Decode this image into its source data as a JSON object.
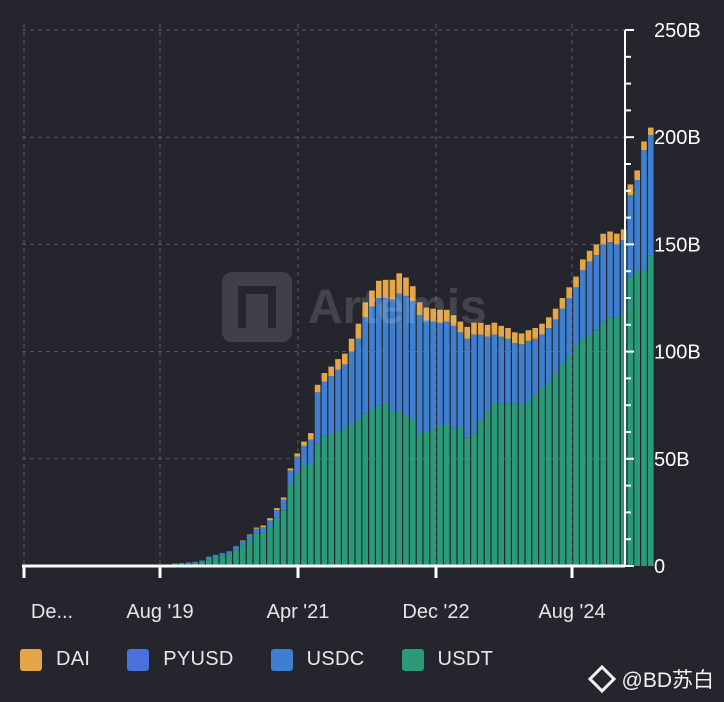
{
  "chart_data": {
    "type": "bar",
    "stacked": true,
    "ylim": [
      0,
      250
    ],
    "yticks": [
      0,
      50,
      100,
      150,
      200,
      250
    ],
    "ytick_labels": [
      "0",
      "50B",
      "100B",
      "150B",
      "200B",
      "250B"
    ],
    "xtick_labels": [
      "De...",
      "Aug '19",
      "Apr '21",
      "Dec '22",
      "Aug '24"
    ],
    "grid": true,
    "legend_position": "bottom",
    "series": [
      {
        "name": "USDT",
        "color": "#2a9a77",
        "values": [
          1.0,
          1.2,
          1.4,
          1.6,
          2.0,
          3.5,
          4.2,
          5.0,
          5.8,
          7.8,
          10.0,
          12.5,
          15.0,
          15.5,
          18.5,
          22.5,
          26.0,
          38.0,
          43.0,
          47.0,
          48.0,
          57.0,
          61.0,
          61.5,
          62.5,
          64.0,
          66.0,
          68.0,
          71.0,
          73.0,
          75.0,
          76.0,
          72.5,
          72.0,
          70.0,
          68.5,
          62.0,
          62.5,
          64.0,
          65.5,
          66.0,
          64.0,
          65.0,
          60.0,
          62.0,
          68.0,
          72.0,
          76.0,
          76.0,
          76.0,
          76.0,
          75.5,
          77.0,
          80.0,
          83.0,
          86.0,
          90.0,
          94.0,
          98.0,
          103.0,
          106.0,
          108.0,
          110.0,
          114.0,
          116.0,
          116.0,
          118.0,
          135.0,
          138.0,
          138.0,
          145.0
        ]
      },
      {
        "name": "USDC",
        "color": "#3f7fd0",
        "values": [
          0.2,
          0.2,
          0.3,
          0.4,
          0.5,
          0.9,
          1.0,
          1.0,
          1.1,
          1.5,
          1.8,
          2.0,
          2.4,
          2.6,
          2.8,
          3.5,
          5.0,
          6.5,
          8.0,
          9.0,
          11.0,
          24.0,
          25.0,
          27.0,
          29.0,
          30.0,
          34.0,
          38.0,
          45.0,
          48.0,
          50.0,
          49.0,
          52.0,
          55.0,
          56.0,
          55.0,
          55.0,
          52.0,
          50.0,
          48.0,
          48.0,
          48.0,
          44.0,
          46.0,
          46.0,
          40.0,
          35.0,
          32.0,
          31.0,
          30.0,
          28.0,
          28.0,
          28.0,
          26.0,
          25.0,
          25.0,
          25.0,
          26.0,
          27.0,
          27.0,
          32.0,
          34.0,
          35.0,
          36.0,
          35.0,
          34.0,
          34.0,
          38.0,
          42.0,
          56.0,
          56.0
        ]
      },
      {
        "name": "PYUSD",
        "color": "#4a72de",
        "values": [
          0,
          0,
          0,
          0,
          0,
          0,
          0,
          0,
          0,
          0,
          0,
          0,
          0,
          0,
          0,
          0,
          0,
          0,
          0,
          0,
          0,
          0,
          0,
          0,
          0,
          0,
          0,
          0,
          0,
          0,
          0,
          0,
          0,
          0,
          0,
          0,
          0,
          0,
          0,
          0,
          0,
          0,
          0,
          0,
          0,
          0,
          0,
          0,
          0,
          0,
          0,
          0,
          0,
          0,
          0,
          0,
          0,
          0,
          0,
          0,
          0,
          0,
          0,
          0,
          0,
          0,
          0,
          0,
          0,
          0,
          0
        ]
      },
      {
        "name": "DAI",
        "color": "#e5a648",
        "values": [
          0,
          0,
          0,
          0,
          0,
          0,
          0,
          0,
          0,
          0,
          0.1,
          0.2,
          0.5,
          0.8,
          1.0,
          1.0,
          1.0,
          1.0,
          1.5,
          2.0,
          3.0,
          3.5,
          4.0,
          4.5,
          5.0,
          5.0,
          6.0,
          7.0,
          7.0,
          7.5,
          8.0,
          8.5,
          9.0,
          9.5,
          8.5,
          7.0,
          6.0,
          6.0,
          6.0,
          6.0,
          5.5,
          5.0,
          5.0,
          5.5,
          5.5,
          5.5,
          5.5,
          5.5,
          5.0,
          5.0,
          5.0,
          5.0,
          5.0,
          5.0,
          5.0,
          5.0,
          5.0,
          5.0,
          5.0,
          5.0,
          5.0,
          5.0,
          5.0,
          5.0,
          5.0,
          5.0,
          5.0,
          5.0,
          4.5,
          4.0,
          3.5
        ]
      }
    ]
  },
  "watermark": "Artemis",
  "credit": "@BD苏白"
}
